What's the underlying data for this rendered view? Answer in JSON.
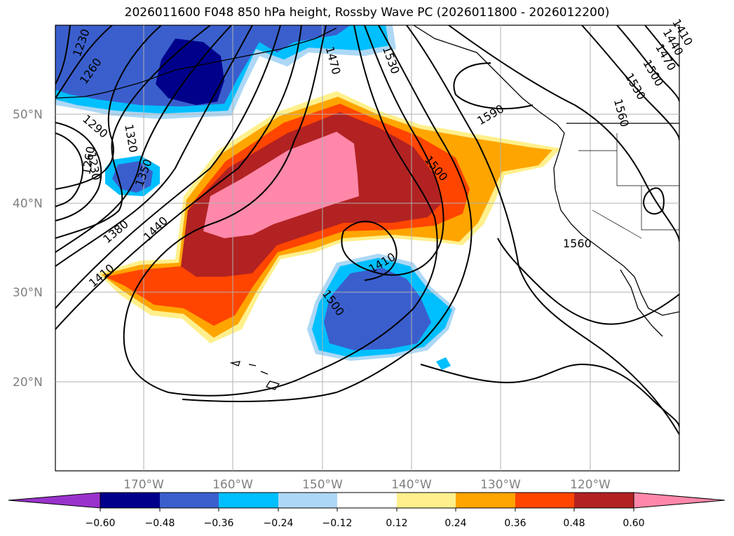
{
  "title": "2026011600 F048 850 hPa height, Rossby Wave PC (2026011800 - 2026012200)",
  "latitudes": [
    "50°N",
    "40°N",
    "30°N",
    "20°N"
  ],
  "longitudes": [
    "170°W",
    "160°W",
    "150°W",
    "140°W",
    "130°W",
    "120°W"
  ],
  "contour_labels": [
    "1230",
    "1260",
    "1290",
    "1320",
    "1230",
    "1260",
    "1350",
    "1380",
    "1440",
    "1410",
    "1470",
    "1530",
    "1590",
    "1500",
    "1410",
    "1500",
    "1560",
    "1530",
    "1500",
    "1470",
    "1440",
    "1410",
    "1560"
  ],
  "colorbar": {
    "ticks": [
      "−0.60",
      "−0.48",
      "−0.36",
      "−0.24",
      "−0.12",
      "0.12",
      "0.24",
      "0.36",
      "0.48",
      "0.60"
    ],
    "colors": [
      "#9932cc",
      "#00008b",
      "#3a5fcd",
      "#00bfff",
      "#add8f5",
      "#ffffff",
      "#fff08c",
      "#ffa500",
      "#ff4500",
      "#b22222",
      "#ff88aa"
    ]
  },
  "fill_colors": {
    "dark_blue": "#00008b",
    "blue": "#3a5fcd",
    "deep_sky": "#00bfff",
    "light_blue": "#add8f5",
    "yellow": "#fff08c",
    "orange": "#ffa500",
    "red_orange": "#ff4500",
    "firebrick": "#b22222",
    "pink": "#ff88aa"
  }
}
